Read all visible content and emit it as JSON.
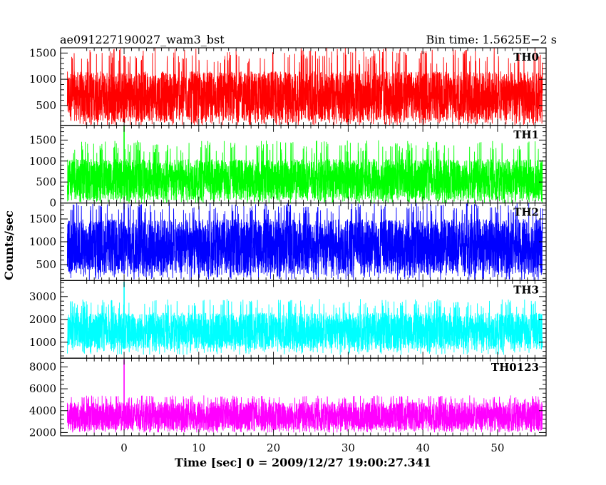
{
  "header": {
    "left": "ae091227190027_wam3_bst",
    "right": "Bin time: 1.5625E−2 s"
  },
  "xlabel": "Time [sec] 0 = 2009/12/27 19:00:27.341",
  "ylabel": "Counts/sec",
  "chart_data": {
    "type": "line",
    "x_range": [
      -8.5,
      56.5
    ],
    "x_ticks": [
      0,
      10,
      20,
      30,
      40,
      50
    ],
    "x_tick_labels": [
      "0",
      "10",
      "20",
      "30",
      "40",
      "50"
    ],
    "burst_time": 0,
    "grid": false,
    "panels": [
      {
        "name": "TH0",
        "color": "#ff0000",
        "ylim": [
          120,
          1600
        ],
        "yticks": [
          500,
          1000,
          1500
        ],
        "ytick_labels": [
          "500",
          "1000",
          "1500"
        ],
        "typical_range": [
          200,
          1150
        ],
        "extreme_range": [
          120,
          1600
        ],
        "burst_peak": 1450
      },
      {
        "name": "TH1",
        "color": "#00ff00",
        "ylim": [
          0,
          1850
        ],
        "yticks": [
          0,
          500,
          1000,
          1500
        ],
        "ytick_labels": [
          "0",
          "500",
          "1000",
          "1500"
        ],
        "typical_range": [
          80,
          1050
        ],
        "extreme_range": [
          0,
          1500
        ],
        "burst_peak": 1850
      },
      {
        "name": "TH2",
        "color": "#0000ff",
        "ylim": [
          150,
          1850
        ],
        "yticks": [
          500,
          1000,
          1500
        ],
        "ytick_labels": [
          "500",
          "1000",
          "1500"
        ],
        "typical_range": [
          300,
          1500
        ],
        "extreme_range": [
          160,
          1850
        ],
        "burst_peak": 1850
      },
      {
        "name": "TH3",
        "color": "#00ffff",
        "ylim": [
          300,
          3700
        ],
        "yticks": [
          1000,
          2000,
          3000
        ],
        "ytick_labels": [
          "1000",
          "2000",
          "3000"
        ],
        "typical_range": [
          700,
          2300
        ],
        "extreme_range": [
          450,
          2900
        ],
        "burst_peak": 3650
      },
      {
        "name": "TH0123",
        "color": "#ff00ff",
        "ylim": [
          1700,
          8800
        ],
        "yticks": [
          2000,
          4000,
          6000,
          8000
        ],
        "ytick_labels": [
          "2000",
          "4000",
          "6000",
          "8000"
        ],
        "typical_range": [
          2200,
          4800
        ],
        "extreme_range": [
          2000,
          5400
        ],
        "burst_peak": 8700
      }
    ]
  }
}
